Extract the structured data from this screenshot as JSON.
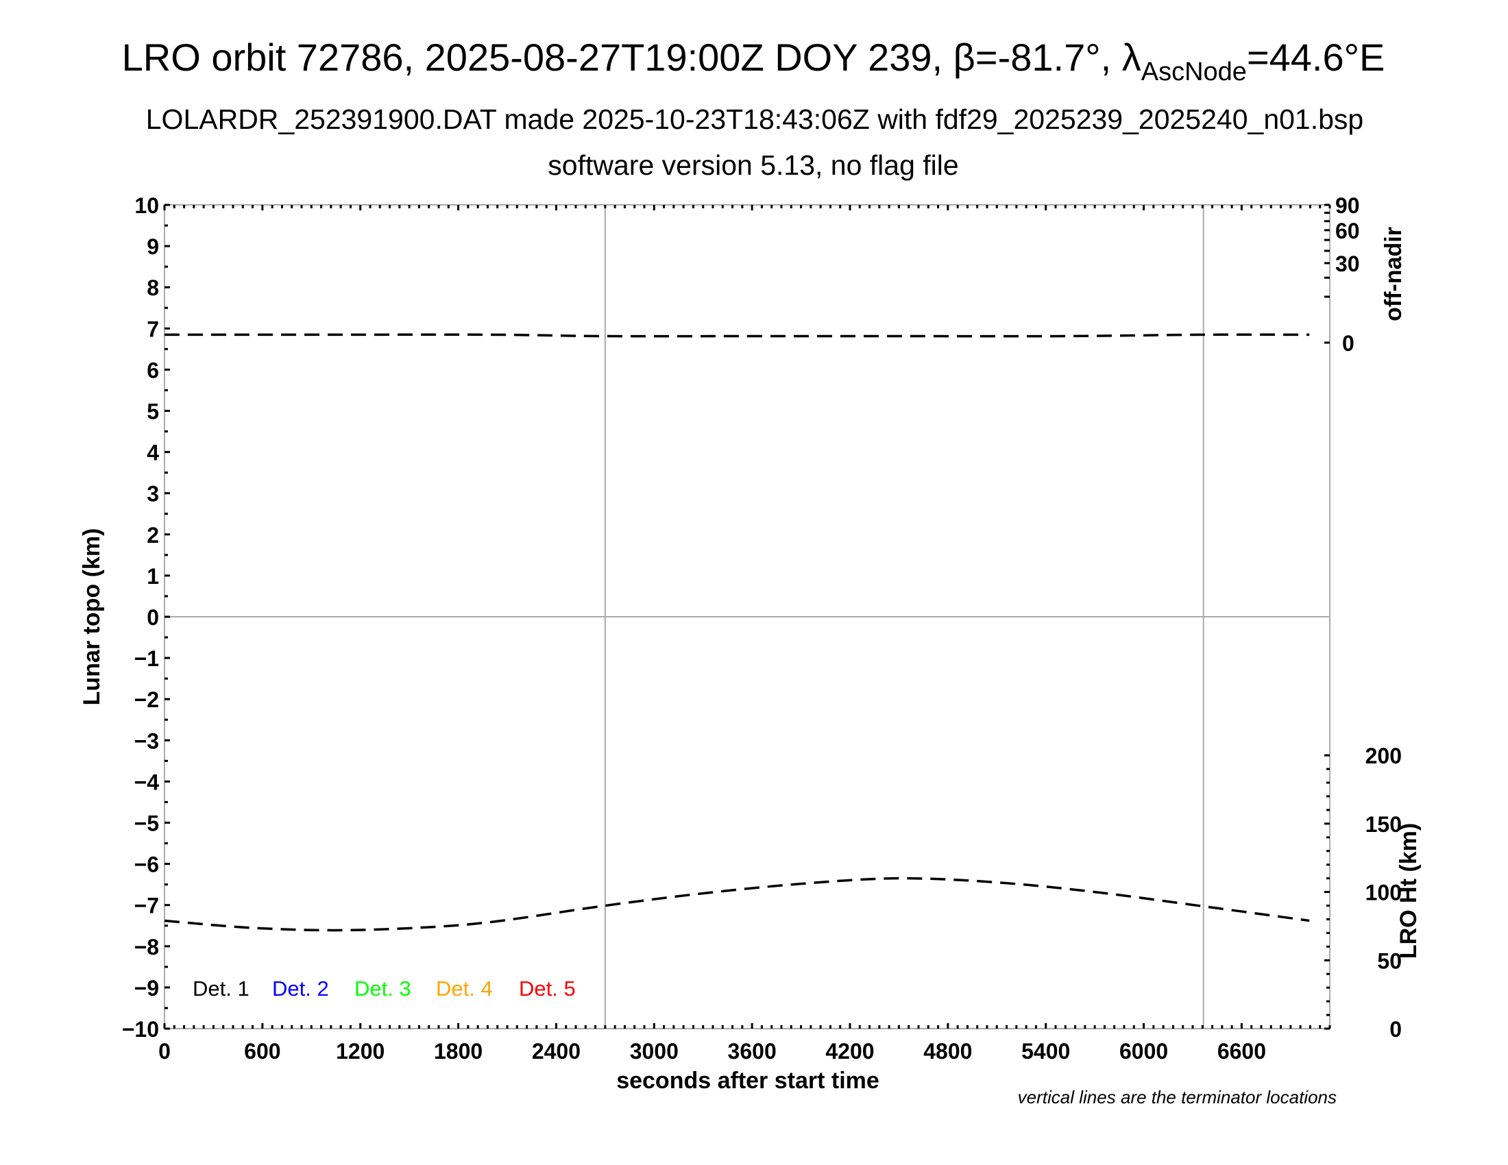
{
  "title": {
    "main": "LRO orbit 72786, 2025-08-27T19:00Z DOY 239, β=-81.7°, λ",
    "sub": "AscNode",
    "tail": "=44.6°E"
  },
  "subtitle": "LOLARDR_252391900.DAT made 2025-10-23T18:43:06Z with fdf29_2025239_2025240_n01.bsp",
  "subtitle2": "software version 5.13, no flag file",
  "note": "vertical lines are the terminator locations",
  "chart_data": {
    "type": "line",
    "xlabel": "seconds after start time",
    "ylabel": "Lunar topo (km)",
    "y2label_top": "off-nadir",
    "y2label_bottom": "LRO Ht (km)",
    "xlim": [
      0,
      7140
    ],
    "ylim": [
      -10,
      10
    ],
    "x_ticks": [
      0,
      600,
      1200,
      1800,
      2400,
      3000,
      3600,
      4200,
      4800,
      5400,
      6000,
      6600
    ],
    "y_ticks": [
      10,
      9,
      8,
      7,
      6,
      5,
      4,
      3,
      2,
      1,
      0,
      -1,
      -2,
      -3,
      -4,
      -5,
      -6,
      -7,
      -8,
      -9,
      -10
    ],
    "y_tick_labels": [
      "10",
      "9",
      "8",
      "7",
      "6",
      "5",
      "4",
      "3",
      "2",
      "1",
      "0",
      "−1",
      "−2",
      "−3",
      "−4",
      "−5",
      "−6",
      "−7",
      "−8",
      "−9",
      "−10"
    ],
    "offnadir_scale": "sqrt",
    "offnadir_ticks": [
      90,
      60,
      30,
      0
    ],
    "ht_ticks": [
      200,
      150,
      100,
      50,
      0
    ],
    "terminator_x": [
      2700,
      6366
    ],
    "grid": false,
    "legend": {
      "placement": "bottom-left",
      "entries": [
        {
          "label": "Det. 1",
          "color": "#000000"
        },
        {
          "label": "Det. 2",
          "color": "#0000ff"
        },
        {
          "label": "Det. 3",
          "color": "#00ff00"
        },
        {
          "label": "Det. 4",
          "color": "#ffa500"
        },
        {
          "label": "Det. 5",
          "color": "#ff0000"
        }
      ]
    },
    "series": [
      {
        "axis": "off-nadir",
        "style": "dashed",
        "color": "#000000",
        "x": [
          0,
          1000,
          2000,
          2700,
          3500,
          4500,
          5500,
          6366,
          7015
        ],
        "y": [
          0.3,
          0.3,
          0.3,
          0.2,
          0.2,
          0.2,
          0.2,
          0.3,
          0.3
        ]
      },
      {
        "axis": "LRO Ht",
        "style": "dashed",
        "color": "#000000",
        "x": [
          0,
          500,
          1000,
          1500,
          2000,
          2700,
          3300,
          3900,
          4500,
          5100,
          5700,
          6366,
          7015
        ],
        "y": [
          79,
          74,
          72,
          73.5,
          78,
          90,
          99,
          106,
          110,
          107,
          100,
          89.5,
          79
        ]
      }
    ]
  }
}
